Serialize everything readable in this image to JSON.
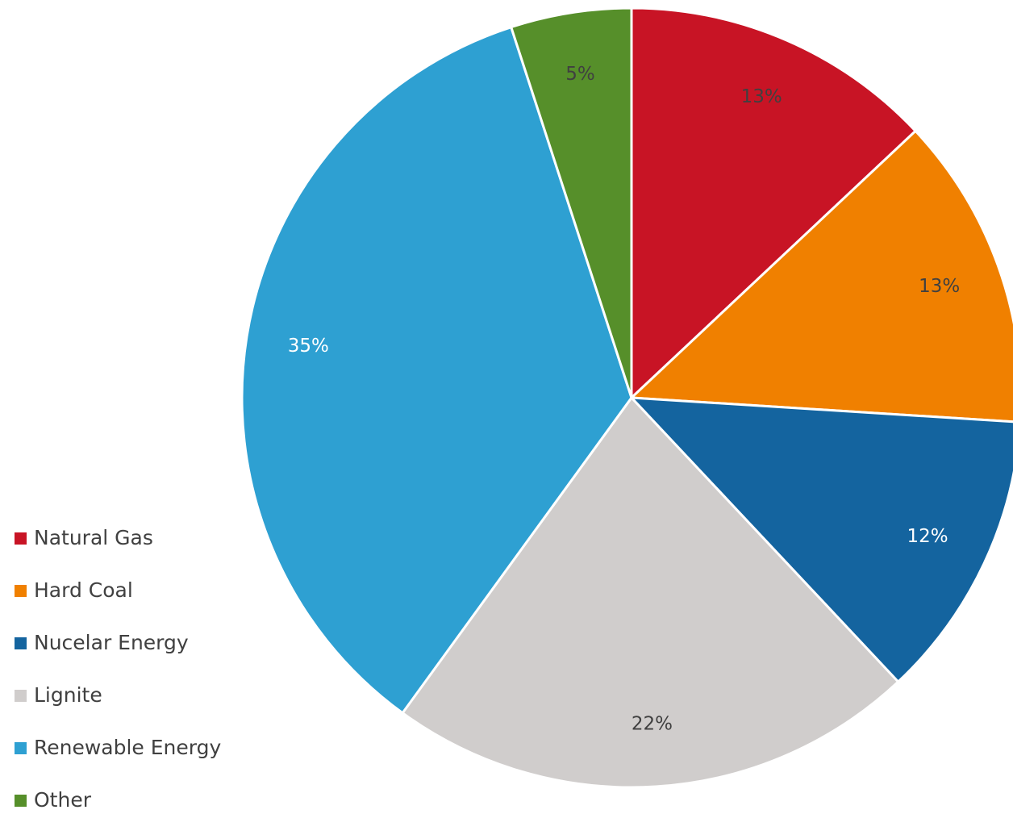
{
  "chart_data": {
    "type": "pie",
    "categories": [
      "Natural Gas",
      "Hard Coal",
      "Nucelar Energy",
      "Lignite",
      "Renewable Energy",
      "Other"
    ],
    "values": [
      13,
      13,
      12,
      22,
      35,
      5
    ],
    "labels": [
      "13%",
      "13%",
      "12%",
      "22%",
      "35%",
      "5%"
    ],
    "colors": [
      "#c81425",
      "#f08000",
      "#14649f",
      "#d0cdcc",
      "#2ea0d2",
      "#568f2a"
    ],
    "label_colors": [
      "#404040",
      "#404040",
      "#ffffff",
      "#404040",
      "#ffffff",
      "#404040"
    ],
    "start_angle": "12 o'clock",
    "direction": "clockwise",
    "legend_position": "left-bottom"
  }
}
